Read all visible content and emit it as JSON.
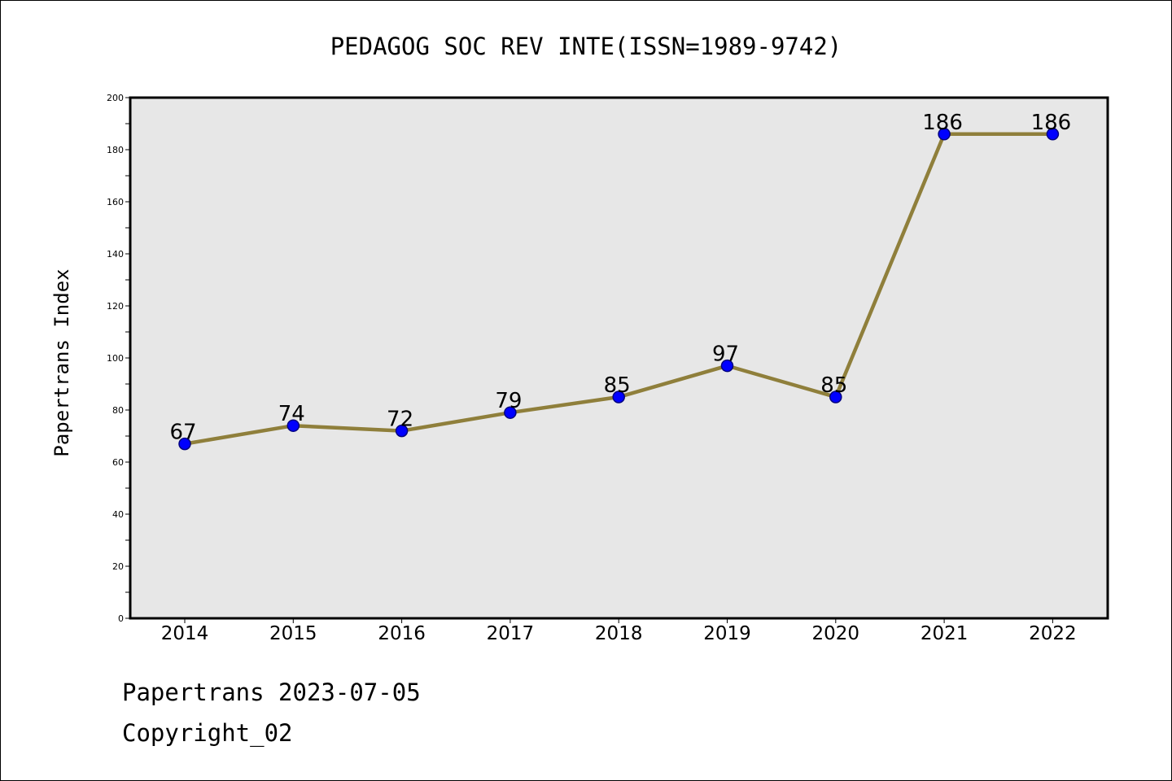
{
  "chart_data": {
    "type": "line",
    "title": "PEDAGOG SOC REV INTE(ISSN=1989-9742)",
    "xlabel": "",
    "ylabel": "Papertrans Index",
    "x": [
      "2014",
      "2015",
      "2016",
      "2017",
      "2018",
      "2019",
      "2020",
      "2021",
      "2022"
    ],
    "series": [
      {
        "values": [
          67,
          74,
          72,
          79,
          85,
          97,
          85,
          186,
          186
        ]
      }
    ],
    "ylim": [
      0,
      200
    ],
    "yticks": [
      0,
      20,
      40,
      60,
      80,
      100,
      120,
      140,
      160,
      180,
      200
    ],
    "data_labels": true,
    "grid": false,
    "legend": "none",
    "colors": {
      "line": "#8f7f3b",
      "marker_fill": "#0000ff",
      "marker_edge": "#000080",
      "plot_background": "#e7e7e7"
    }
  },
  "footer": {
    "line1": "Papertrans 2023-07-05",
    "line2": "Copyright_02"
  }
}
